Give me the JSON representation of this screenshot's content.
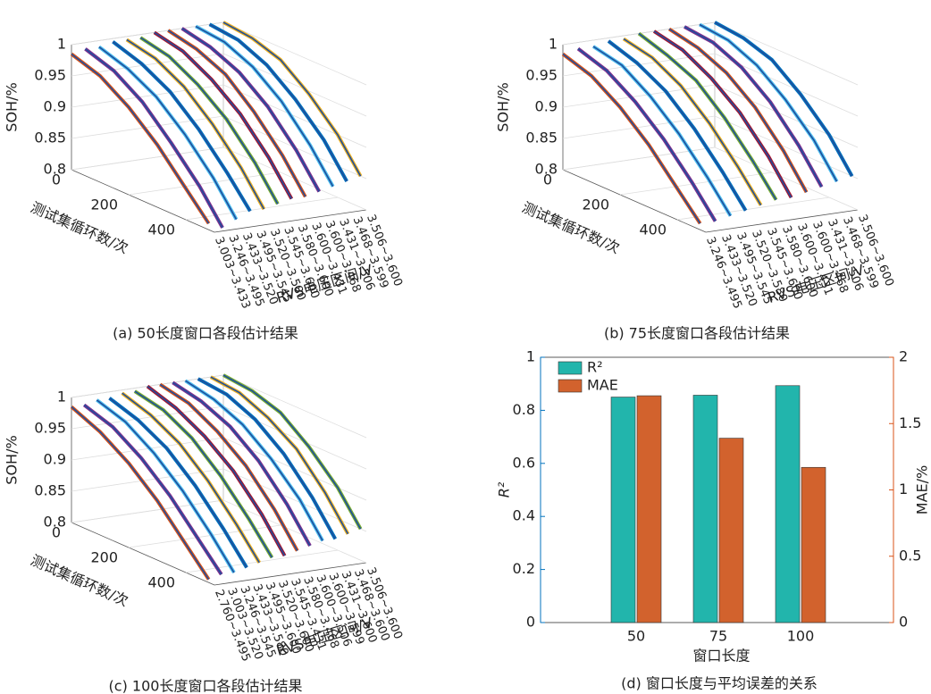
{
  "chart_data": [
    {
      "type": "line3d",
      "caption": "(a) 50长度窗口各段估计结果",
      "zlabel": "SOH/%",
      "ylabel": "测试集循环数/次",
      "xlabel": "RVS电压区间/V",
      "zlim": [
        0.8,
        1
      ],
      "zticks": [
        0.8,
        0.85,
        0.9,
        0.95,
        1
      ],
      "ylim": [
        0,
        500
      ],
      "yticks": [
        0,
        200,
        400
      ],
      "x": [
        0,
        100,
        200,
        300,
        400,
        480
      ],
      "categories": [
        "3.003~3.433",
        "3.246~3.495",
        "3.433~3.520",
        "3.495~3.545",
        "3.520~3.580",
        "3.545~3.600",
        "3.580~3.600",
        "3.600~3.431",
        "3.600~3.468",
        "3.431~3.506",
        "3.468~3.599",
        "3.506~3.600"
      ],
      "colors": [
        "#D95319",
        "#7E2F8E",
        "#4DBEEE",
        "#0072BD",
        "#EDB120",
        "#77AC30",
        "#A2142F"
      ],
      "fit_color": "#1F4E9C",
      "values": [
        [
          0.985,
          0.97,
          0.94,
          0.9,
          0.85,
          0.81
        ],
        [
          0.99,
          0.975,
          0.945,
          0.9,
          0.85,
          0.8
        ],
        [
          0.99,
          0.975,
          0.95,
          0.91,
          0.86,
          0.81
        ],
        [
          0.995,
          0.98,
          0.955,
          0.915,
          0.865,
          0.82
        ],
        [
          0.995,
          0.985,
          0.96,
          0.92,
          0.87,
          0.82
        ],
        [
          0.995,
          0.985,
          0.96,
          0.925,
          0.875,
          0.825
        ],
        [
          1,
          0.99,
          0.965,
          0.93,
          0.88,
          0.83
        ],
        [
          1,
          0.99,
          0.97,
          0.93,
          0.88,
          0.83
        ],
        [
          1,
          0.99,
          0.97,
          0.935,
          0.885,
          0.835
        ],
        [
          1,
          0.995,
          0.975,
          0.94,
          0.89,
          0.84
        ],
        [
          1,
          0.995,
          0.975,
          0.94,
          0.895,
          0.845
        ],
        [
          1,
          0.995,
          0.98,
          0.945,
          0.9,
          0.85
        ]
      ]
    },
    {
      "type": "line3d",
      "caption": "(b) 75长度窗口各段估计结果",
      "zlabel": "SOH/%",
      "ylabel": "测试集循环数/次",
      "xlabel": "RVS电压区间/V",
      "zlim": [
        0.8,
        1
      ],
      "zticks": [
        0.8,
        0.85,
        0.9,
        0.95,
        1
      ],
      "ylim": [
        0,
        500
      ],
      "yticks": [
        0,
        200,
        400
      ],
      "x": [
        0,
        100,
        200,
        300,
        400,
        480
      ],
      "categories": [
        "3.246~3.495",
        "3.433~3.520",
        "3.495~3.545",
        "3.520~3.580",
        "3.545~3.600",
        "3.580~3.600",
        "3.600~3.431",
        "3.600~3.468",
        "3.431~3.506",
        "3.468~3.599",
        "3.506~3.600"
      ],
      "colors": [
        "#D95319",
        "#7E2F8E",
        "#4DBEEE",
        "#0072BD",
        "#EDB120",
        "#77AC30",
        "#A2142F"
      ],
      "fit_color": "#1F4E9C",
      "values": [
        [
          0.985,
          0.97,
          0.94,
          0.9,
          0.85,
          0.81
        ],
        [
          0.99,
          0.975,
          0.945,
          0.905,
          0.855,
          0.81
        ],
        [
          0.99,
          0.98,
          0.95,
          0.91,
          0.86,
          0.815
        ],
        [
          0.995,
          0.98,
          0.955,
          0.915,
          0.865,
          0.82
        ],
        [
          0.995,
          0.985,
          0.96,
          0.92,
          0.87,
          0.825
        ],
        [
          1,
          0.985,
          0.965,
          0.925,
          0.875,
          0.83
        ],
        [
          1,
          0.99,
          0.965,
          0.93,
          0.88,
          0.83
        ],
        [
          1,
          0.99,
          0.97,
          0.935,
          0.885,
          0.835
        ],
        [
          1,
          0.995,
          0.975,
          0.94,
          0.89,
          0.84
        ],
        [
          1,
          0.995,
          0.975,
          0.94,
          0.895,
          0.845
        ],
        [
          1,
          0.995,
          0.98,
          0.945,
          0.9,
          0.85
        ]
      ]
    },
    {
      "type": "line3d",
      "caption": "(c) 100长度窗口各段估计结果",
      "zlabel": "SOH/%",
      "ylabel": "测试集循环数/次",
      "xlabel": "RVS电压区间/V",
      "zlim": [
        0.8,
        1
      ],
      "zticks": [
        0.8,
        0.85,
        0.9,
        0.95,
        1
      ],
      "ylim": [
        0,
        500
      ],
      "yticks": [
        0,
        200,
        400
      ],
      "x": [
        0,
        100,
        200,
        300,
        400,
        480
      ],
      "categories": [
        "2.760~3.495",
        "3.003~3.520",
        "3.246~3.545",
        "3.433~3.580",
        "3.495~3.600",
        "3.520~3.600",
        "3.545~3.431",
        "3.580~3.468",
        "3.600~3.506",
        "3.600~3.599",
        "3.431~3.600",
        "3.468~3.600",
        "3.506~3.600"
      ],
      "colors": [
        "#D95319",
        "#7E2F8E",
        "#4DBEEE",
        "#0072BD",
        "#EDB120",
        "#77AC30",
        "#A2142F"
      ],
      "fit_color": "#1F4E9C",
      "values": [
        [
          0.985,
          0.965,
          0.935,
          0.895,
          0.845,
          0.805
        ],
        [
          0.985,
          0.97,
          0.94,
          0.9,
          0.85,
          0.81
        ],
        [
          0.99,
          0.975,
          0.945,
          0.905,
          0.855,
          0.81
        ],
        [
          0.99,
          0.975,
          0.95,
          0.91,
          0.86,
          0.815
        ],
        [
          0.995,
          0.98,
          0.955,
          0.915,
          0.865,
          0.82
        ],
        [
          0.995,
          0.985,
          0.96,
          0.92,
          0.87,
          0.825
        ],
        [
          1,
          0.985,
          0.96,
          0.925,
          0.875,
          0.825
        ],
        [
          1,
          0.99,
          0.965,
          0.93,
          0.88,
          0.83
        ],
        [
          1,
          0.99,
          0.97,
          0.935,
          0.885,
          0.835
        ],
        [
          1,
          0.99,
          0.97,
          0.935,
          0.89,
          0.84
        ],
        [
          1,
          0.995,
          0.975,
          0.94,
          0.89,
          0.84
        ],
        [
          1,
          0.995,
          0.975,
          0.945,
          0.895,
          0.845
        ],
        [
          1,
          0.995,
          0.98,
          0.945,
          0.9,
          0.85
        ]
      ]
    },
    {
      "type": "bar",
      "caption": "(d) 窗口长度与平均误差的关系",
      "xlabel": "窗口长度",
      "ylabel": "R²",
      "y2label": "MAE/%",
      "categories": [
        "50",
        "75",
        "100"
      ],
      "series": [
        {
          "name": "R²",
          "color": "#22B5AC",
          "values": [
            0.85,
            0.857,
            0.893
          ]
        },
        {
          "name": "MAE",
          "color": "#D2622D",
          "values": [
            1.71,
            1.39,
            1.17
          ],
          "axis": "y2"
        }
      ],
      "ylim": [
        0,
        1
      ],
      "yticks": [
        0,
        0.2,
        0.4,
        0.6,
        0.8,
        1
      ],
      "y2lim": [
        0,
        2
      ],
      "y2ticks": [
        0,
        0.5,
        1,
        1.5,
        2
      ],
      "ycolor": "#0072BD",
      "y2color": "#D95319"
    }
  ]
}
